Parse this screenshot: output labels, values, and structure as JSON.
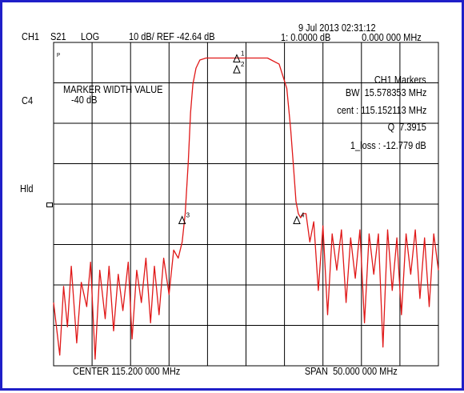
{
  "header": {
    "channel": "CH1",
    "parameter": "S21",
    "format": "LOG",
    "scale_ref": "10 dB/ REF -42.64 dB",
    "datetime": "9 Jul 2013 02:31:12",
    "marker_readout": "1: 0.0000 dB",
    "marker_freq": "0.000 000 MHz"
  },
  "left_labels": {
    "corr": "C4",
    "hold": "Hld",
    "small": "P"
  },
  "marker_width_box": {
    "title": "MARKER WIDTH VALUE",
    "value": "-40 dB"
  },
  "markers_panel": {
    "title": "CH1 Markers",
    "bw": "BW  15.578353 MHz",
    "cent": "cent : 115.152113 MHz",
    "q": "Q  7.3915",
    "loss": "1_loss : -12.779 dB"
  },
  "footer": {
    "center": "CENTER 115.200 000 MHz",
    "span": "SPAN  50.000 000 MHz"
  },
  "colors": {
    "trace": "#e01818",
    "grid": "#000000",
    "frame": "#1f1fc8",
    "marker": "#000000"
  },
  "chart_data": {
    "type": "line",
    "title": "",
    "xlabel": "",
    "ylabel": "",
    "xlim": [
      90.2,
      140.2
    ],
    "ylim": [
      -122.64,
      -42.64
    ],
    "grid": true,
    "divisions": {
      "x": 10,
      "y": 8
    },
    "series": [
      {
        "x": [
          90.2,
          91.0,
          91.5,
          92.0,
          92.5,
          93.2,
          93.8,
          94.5,
          95.0,
          95.6,
          96.2,
          96.9,
          97.4,
          98.0,
          98.6,
          99.2,
          99.9,
          100.4,
          101.0,
          101.6,
          102.2,
          102.8,
          103.3,
          103.9,
          104.5,
          105.2,
          105.8,
          106.4,
          106.9,
          107.3,
          107.7,
          108.0,
          108.3,
          108.7,
          109.2,
          110.0,
          112.0,
          114.0,
          116.0,
          118.0,
          119.5,
          120.5,
          121.0,
          121.4,
          121.7,
          122.0,
          122.3,
          122.6,
          123.0,
          123.5,
          124.0,
          124.6,
          125.2,
          125.8,
          126.4,
          127.0,
          127.6,
          128.2,
          128.8,
          129.4,
          130.0,
          130.6,
          131.2,
          131.8,
          132.4,
          133.0,
          133.6,
          134.2,
          134.8,
          135.4,
          136.0,
          136.6,
          137.2,
          137.8,
          138.4,
          139.0,
          139.6,
          140.2
        ],
        "y": [
          -107,
          -120,
          -103,
          -113,
          -98,
          -117,
          -102,
          -108,
          -97,
          -121,
          -99,
          -111,
          -98,
          -114,
          -100,
          -109,
          -97,
          -116,
          -99,
          -107,
          -96,
          -112,
          -98,
          -110,
          -96,
          -105,
          -94,
          -96,
          -92,
          -85,
          -72,
          -60,
          -53,
          -49,
          -47,
          -46.5,
          -46.5,
          -46.5,
          -46.5,
          -46.5,
          -48,
          -54,
          -64,
          -74,
          -82,
          -85,
          -86,
          -85,
          -85,
          -92,
          -87,
          -104,
          -88,
          -110,
          -90,
          -99,
          -89,
          -107,
          -91,
          -101,
          -89,
          -112,
          -90,
          -100,
          -90,
          -118,
          -89,
          -104,
          -91,
          -110,
          -90,
          -100,
          -89,
          -106,
          -91,
          -108,
          -90,
          -99
        ]
      }
    ],
    "markers": [
      {
        "id": "1",
        "x": 114.0,
        "y": -46.5
      },
      {
        "id": "2",
        "x": 114.0,
        "y": -49.2
      },
      {
        "id": "3",
        "x": 106.9,
        "y": -86.5
      },
      {
        "id": "4",
        "x": 121.8,
        "y": -86.5
      }
    ]
  }
}
